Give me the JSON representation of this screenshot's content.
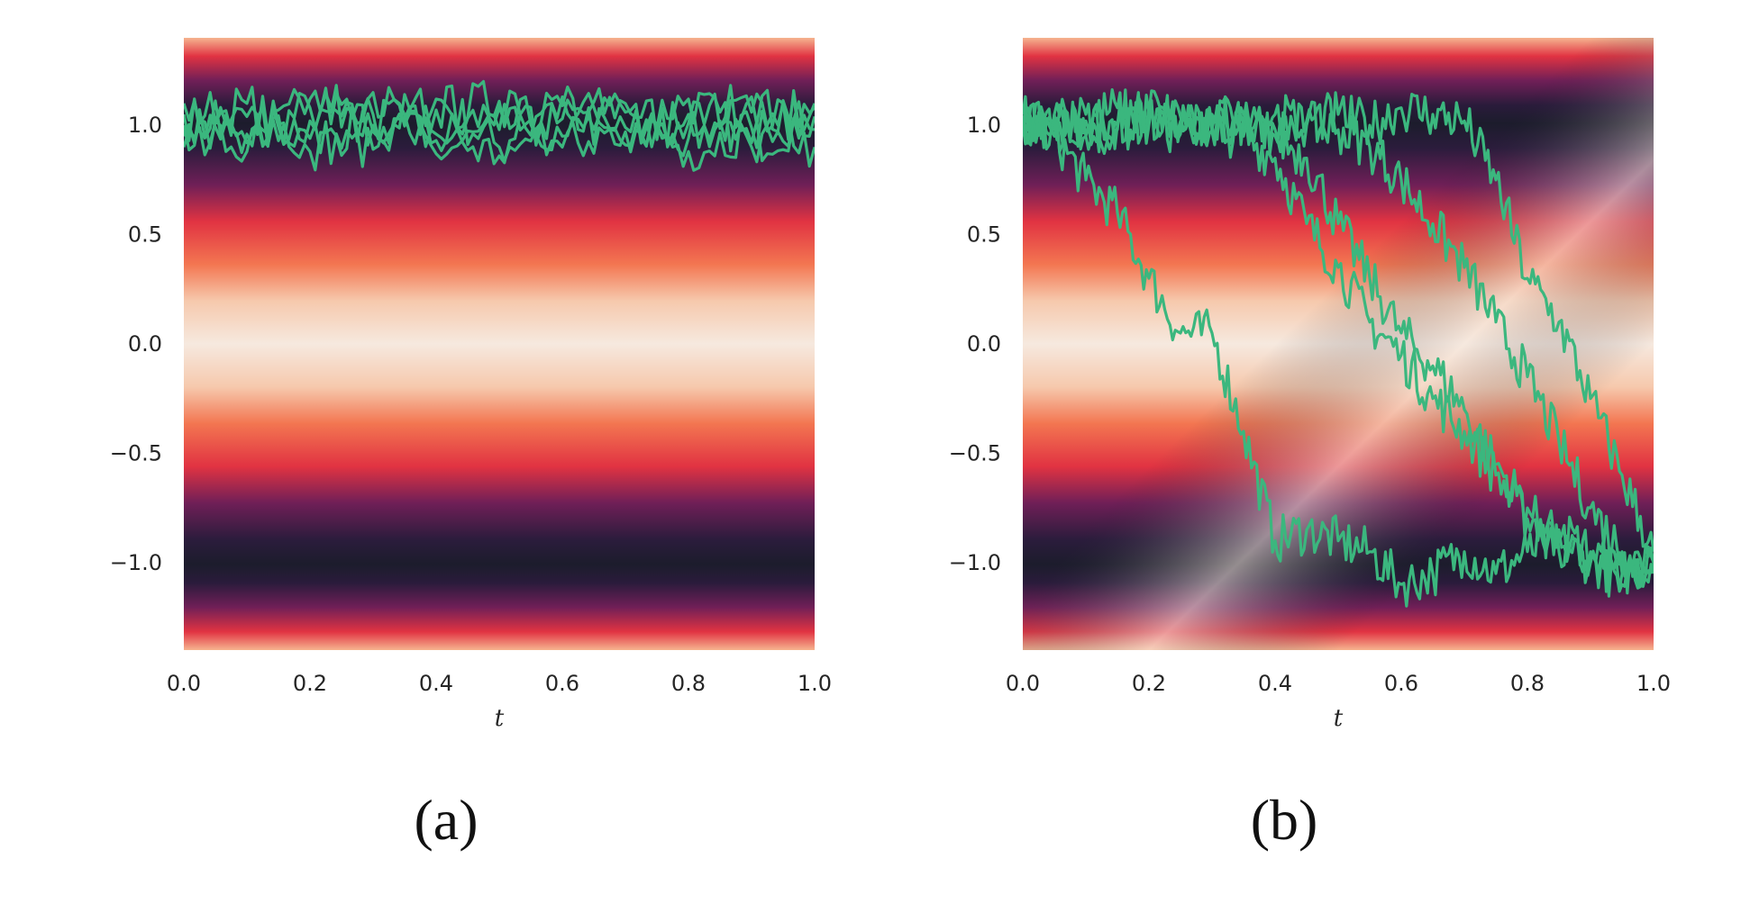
{
  "chart_data": [
    {
      "type": "line",
      "panel_label": "(a)",
      "xlabel": "t",
      "ylabel": "",
      "xlim": [
        0.0,
        1.0
      ],
      "ylim": [
        -1.4,
        1.4
      ],
      "xticks": [
        "0.0",
        "0.2",
        "0.4",
        "0.6",
        "0.8",
        "1.0"
      ],
      "yticks": [
        "1.0",
        "0.5",
        "0.0",
        "−0.5",
        "−1.0"
      ],
      "grid": false,
      "background": "heatmap of potential, bright near y=0 and y=±1.4, dark near y=±1",
      "line_color": "#3bb77e",
      "series": [
        {
          "x": [
            0.0,
            0.1,
            0.2,
            0.3,
            0.4,
            0.5,
            0.6,
            0.7,
            0.8,
            0.9,
            1.0
          ],
          "y": [
            1.05,
            0.92,
            1.08,
            0.97,
            1.12,
            0.9,
            1.03,
            1.1,
            0.94,
            1.06,
            0.98
          ]
        },
        {
          "x": [
            0.0,
            0.1,
            0.2,
            0.3,
            0.4,
            0.5,
            0.6,
            0.7,
            0.8,
            0.9,
            1.0
          ],
          "y": [
            0.95,
            1.1,
            0.88,
            1.05,
            0.93,
            1.08,
            0.9,
            0.99,
            1.12,
            0.92,
            1.04
          ]
        },
        {
          "x": [
            0.0,
            0.1,
            0.2,
            0.3,
            0.4,
            0.5,
            0.6,
            0.7,
            0.8,
            0.9,
            1.0
          ],
          "y": [
            1.1,
            0.96,
            1.02,
            1.15,
            0.87,
            0.98,
            1.09,
            0.91,
            1.01,
            1.13,
            0.9
          ]
        },
        {
          "x": [
            0.0,
            0.1,
            0.2,
            0.3,
            0.4,
            0.5,
            0.6,
            0.7,
            0.8,
            0.9,
            1.0
          ],
          "y": [
            0.9,
            1.04,
            0.94,
            0.89,
            1.07,
            1.11,
            0.95,
            1.06,
            0.88,
            0.99,
            1.08
          ]
        },
        {
          "x": [
            0.0,
            0.1,
            0.2,
            0.3,
            0.4,
            0.5,
            0.6,
            0.7,
            0.8,
            0.9,
            1.0
          ],
          "y": [
            1.0,
            0.88,
            1.12,
            1.0,
            0.96,
            0.86,
            1.13,
            0.97,
            1.05,
            0.9,
            1.1
          ]
        }
      ]
    },
    {
      "type": "line",
      "panel_label": "(b)",
      "xlabel": "t",
      "ylabel": "",
      "xlim": [
        0.0,
        1.0
      ],
      "ylim": [
        -1.4,
        1.4
      ],
      "xticks": [
        "0.0",
        "0.2",
        "0.4",
        "0.6",
        "0.8",
        "1.0"
      ],
      "yticks": [
        "1.0",
        "0.5",
        "0.0",
        "−0.5",
        "−1.0"
      ],
      "grid": false,
      "background": "heatmap of time-dependent potential: minimum travels from y=1 at t=0 down to y=-1 at t=1",
      "line_color": "#3bb77e",
      "series": [
        {
          "x": [
            0.0,
            0.05,
            0.1,
            0.15,
            0.2,
            0.25,
            0.3,
            0.35,
            0.4,
            0.45,
            0.5,
            0.55,
            0.6,
            0.65,
            0.7,
            0.75,
            0.8,
            0.85,
            0.9,
            0.95,
            1.0
          ],
          "y": [
            1.0,
            0.95,
            0.75,
            0.6,
            0.3,
            0.05,
            0.05,
            -0.4,
            -0.9,
            -0.85,
            -0.9,
            -0.95,
            -1.1,
            -1.05,
            -0.95,
            -1.05,
            -0.95,
            -0.9,
            -1.0,
            -1.05,
            -1.0
          ]
        },
        {
          "x": [
            0.0,
            0.05,
            0.1,
            0.15,
            0.2,
            0.25,
            0.3,
            0.35,
            0.4,
            0.45,
            0.5,
            0.55,
            0.6,
            0.65,
            0.7,
            0.75,
            0.8,
            0.85,
            0.9,
            0.95,
            1.0
          ],
          "y": [
            1.02,
            1.05,
            0.95,
            1.0,
            1.08,
            1.0,
            0.98,
            0.95,
            0.85,
            0.55,
            0.35,
            0.1,
            -0.05,
            -0.25,
            -0.4,
            -0.6,
            -0.8,
            -0.85,
            -0.95,
            -1.05,
            -1.0
          ]
        },
        {
          "x": [
            0.0,
            0.05,
            0.1,
            0.15,
            0.2,
            0.25,
            0.3,
            0.35,
            0.4,
            0.45,
            0.5,
            0.55,
            0.6,
            0.65,
            0.7,
            0.75,
            0.8,
            0.85,
            0.9,
            0.95,
            1.0
          ],
          "y": [
            0.95,
            1.0,
            1.05,
            0.98,
            1.02,
            0.96,
            1.05,
            1.0,
            0.95,
            0.85,
            0.55,
            0.3,
            0.05,
            -0.1,
            -0.3,
            -0.55,
            -0.75,
            -0.95,
            -1.0,
            -1.1,
            -1.0
          ]
        },
        {
          "x": [
            0.0,
            0.05,
            0.1,
            0.15,
            0.2,
            0.25,
            0.3,
            0.35,
            0.4,
            0.45,
            0.5,
            0.55,
            0.6,
            0.65,
            0.7,
            0.75,
            0.8,
            0.85,
            0.9,
            0.95,
            1.0
          ],
          "y": [
            1.05,
            0.98,
            1.02,
            1.08,
            1.0,
            1.04,
            0.97,
            1.02,
            1.05,
            1.0,
            0.98,
            0.9,
            0.75,
            0.55,
            0.35,
            0.1,
            -0.15,
            -0.45,
            -0.75,
            -0.95,
            -1.05
          ]
        },
        {
          "x": [
            0.0,
            0.05,
            0.1,
            0.15,
            0.2,
            0.25,
            0.3,
            0.35,
            0.4,
            0.45,
            0.5,
            0.55,
            0.6,
            0.65,
            0.7,
            0.75,
            0.8,
            0.85,
            0.9,
            0.95,
            1.0
          ],
          "y": [
            1.0,
            1.05,
            0.95,
            1.0,
            1.06,
            1.02,
            1.0,
            1.05,
            0.98,
            1.02,
            1.05,
            1.0,
            1.08,
            1.05,
            1.02,
            0.75,
            0.3,
            0.1,
            -0.25,
            -0.6,
            -0.95
          ]
        }
      ]
    }
  ]
}
